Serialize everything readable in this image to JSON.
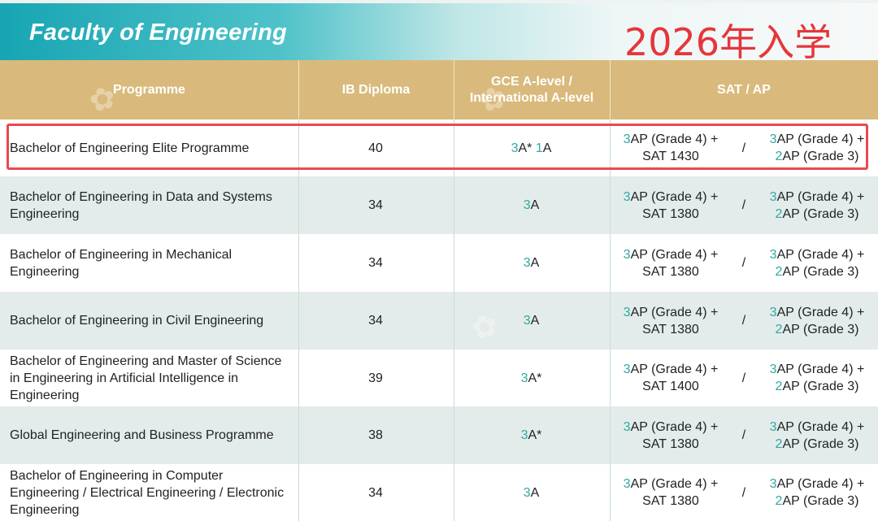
{
  "banner": {
    "faculty_title": "Faculty of Engineering",
    "intake_label": "2026年入学"
  },
  "table": {
    "headers": {
      "programme": "Programme",
      "ib": "IB Diploma",
      "alevel_line1": "GCE A-level /",
      "alevel_line2": "International A-level",
      "sat_ap": "SAT / AP"
    },
    "rows": [
      {
        "programme": "Bachelor of Engineering Elite Programme",
        "ib": "40",
        "alevel": {
          "n1": "3",
          "g1": "A*",
          "n2": "1",
          "g2": "A"
        },
        "sat": {
          "ap_n": "3",
          "ap_text": "AP (Grade 4) +",
          "sat_score": "SAT 1430"
        },
        "ap": {
          "n1": "3",
          "t1": "AP (Grade 4) +",
          "n2": "2",
          "t2": "AP (Grade 3)"
        }
      },
      {
        "programme": "Bachelor of Engineering in Data and Systems Engineering",
        "ib": "34",
        "alevel": {
          "n1": "3",
          "g1": "A",
          "n2": "",
          "g2": ""
        },
        "sat": {
          "ap_n": "3",
          "ap_text": "AP (Grade 4) +",
          "sat_score": "SAT 1380"
        },
        "ap": {
          "n1": "3",
          "t1": "AP (Grade 4) +",
          "n2": "2",
          "t2": "AP (Grade 3)"
        }
      },
      {
        "programme": "Bachelor of Engineering in Mechanical Engineering",
        "ib": "34",
        "alevel": {
          "n1": "3",
          "g1": "A",
          "n2": "",
          "g2": ""
        },
        "sat": {
          "ap_n": "3",
          "ap_text": "AP (Grade 4) +",
          "sat_score": "SAT 1380"
        },
        "ap": {
          "n1": "3",
          "t1": "AP (Grade 4) +",
          "n2": "2",
          "t2": "AP (Grade 3)"
        }
      },
      {
        "programme": "Bachelor of Engineering in Civil Engineering",
        "ib": "34",
        "alevel": {
          "n1": "3",
          "g1": "A",
          "n2": "",
          "g2": ""
        },
        "sat": {
          "ap_n": "3",
          "ap_text": "AP (Grade 4) +",
          "sat_score": "SAT 1380"
        },
        "ap": {
          "n1": "3",
          "t1": "AP (Grade 4) +",
          "n2": "2",
          "t2": "AP (Grade 3)"
        }
      },
      {
        "programme": "Bachelor of Engineering and Master of Science in Engineering in Artificial Intelligence in Engineering",
        "ib": "39",
        "alevel": {
          "n1": "3",
          "g1": "A*",
          "n2": "",
          "g2": ""
        },
        "sat": {
          "ap_n": "3",
          "ap_text": "AP (Grade 4) +",
          "sat_score": "SAT 1400"
        },
        "ap": {
          "n1": "3",
          "t1": "AP (Grade 4) +",
          "n2": "2",
          "t2": "AP (Grade 3)"
        }
      },
      {
        "programme": "Global Engineering and Business Programme",
        "ib": "38",
        "alevel": {
          "n1": "3",
          "g1": "A*",
          "n2": "",
          "g2": ""
        },
        "sat": {
          "ap_n": "3",
          "ap_text": "AP (Grade 4) +",
          "sat_score": "SAT 1380"
        },
        "ap": {
          "n1": "3",
          "t1": "AP (Grade 4) +",
          "n2": "2",
          "t2": "AP (Grade 3)"
        }
      },
      {
        "programme": "Bachelor of Engineering in Computer Engineering / Electrical Engineering / Electronic Engineering",
        "ib": "34",
        "alevel": {
          "n1": "3",
          "g1": "A",
          "n2": "",
          "g2": ""
        },
        "sat": {
          "ap_n": "3",
          "ap_text": "AP (Grade 4) +",
          "sat_score": "SAT 1380"
        },
        "ap": {
          "n1": "3",
          "t1": "AP (Grade 4) +",
          "n2": "2",
          "t2": "AP (Grade 3)"
        }
      }
    ],
    "separator": "/"
  },
  "colors": {
    "accent_teal": "#2fa9a2",
    "header_gold": "#d9ba7c",
    "highlight_red": "#e84a4f"
  }
}
